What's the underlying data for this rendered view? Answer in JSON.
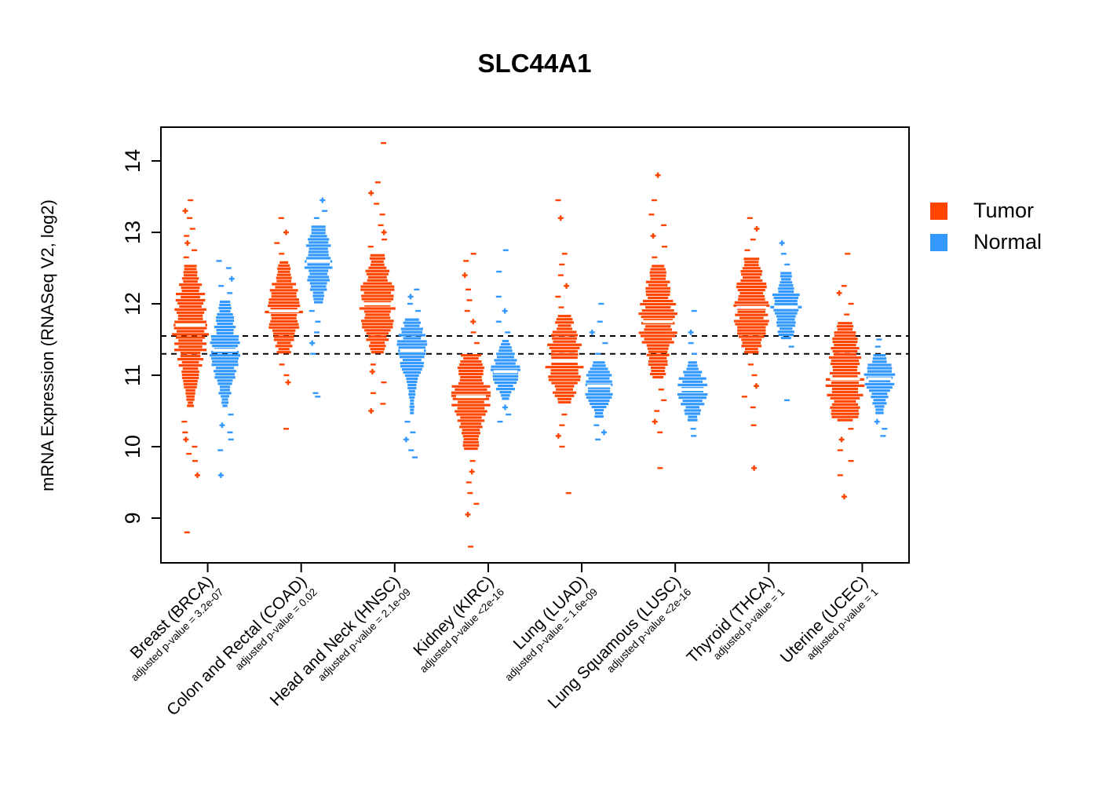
{
  "page": {
    "title": "SLC44A1"
  },
  "legend": {
    "items": [
      {
        "label": "Tumor",
        "color": "#FF4500"
      },
      {
        "label": "Normal",
        "color": "#3399FF"
      }
    ]
  },
  "chart_data": {
    "type": "violin",
    "title": "SLC44A1",
    "xlabel": "",
    "ylabel": "mRNA Expression (RNASeq V2, log2)",
    "ylim": [
      8.4,
      14.5
    ],
    "yticks": [
      9,
      10,
      11,
      12,
      13,
      14
    ],
    "grid": false,
    "legend_position": "right",
    "reference_lines": {
      "values": [
        11.55,
        11.3
      ],
      "style": "dashed",
      "color": "#000000"
    },
    "series_names": [
      "Tumor",
      "Normal"
    ],
    "categories": [
      {
        "label": "Breast (BRCA)",
        "pvalue_label": "adjusted p-value = 3.2e-07",
        "tumor": {
          "median": 11.7,
          "q1": 11.4,
          "q3": 12.1,
          "lo": 10.55,
          "hi": 12.55,
          "outliers": [
            12.65,
            12.75,
            12.85,
            12.95,
            13.05,
            13.2,
            13.3,
            13.45,
            10.35,
            10.2,
            10.1,
            10.0,
            9.9,
            9.8,
            9.6,
            8.8
          ]
        },
        "normal": {
          "median": 11.35,
          "q1": 11.05,
          "q3": 11.6,
          "lo": 10.55,
          "hi": 12.05,
          "outliers": [
            12.15,
            12.25,
            12.35,
            12.5,
            12.6,
            10.45,
            10.3,
            10.2,
            10.1,
            9.95,
            9.6
          ]
        }
      },
      {
        "label": "Colon and Rectal (COAD)",
        "pvalue_label": "adjusted p-value = 0.02",
        "tumor": {
          "median": 11.9,
          "q1": 11.65,
          "q3": 12.15,
          "lo": 11.3,
          "hi": 12.6,
          "outliers": [
            12.7,
            12.85,
            13.0,
            13.2,
            11.15,
            11.0,
            10.9,
            10.25
          ]
        },
        "normal": {
          "median": 12.6,
          "q1": 12.35,
          "q3": 12.85,
          "lo": 12.0,
          "hi": 13.1,
          "outliers": [
            13.2,
            13.3,
            13.45,
            11.9,
            11.75,
            11.6,
            11.45,
            11.3,
            10.75,
            10.7
          ]
        }
      },
      {
        "label": "Head and Neck (HNSC)",
        "pvalue_label": "adjusted p-value = 2.1e-09",
        "tumor": {
          "median": 12.0,
          "q1": 11.7,
          "q3": 12.3,
          "lo": 11.3,
          "hi": 12.7,
          "outliers": [
            12.8,
            12.9,
            13.0,
            13.1,
            13.25,
            13.4,
            13.55,
            13.7,
            14.25,
            11.15,
            11.05,
            10.9,
            10.75,
            10.6,
            10.5
          ]
        },
        "normal": {
          "median": 11.35,
          "q1": 11.1,
          "q3": 11.55,
          "lo": 10.45,
          "hi": 11.8,
          "outliers": [
            11.9,
            12.0,
            12.1,
            12.2,
            10.35,
            10.2,
            10.1,
            9.95,
            9.85
          ]
        }
      },
      {
        "label": "Kidney (KIRC)",
        "pvalue_label": "adjusted p-value <2e-16",
        "tumor": {
          "median": 10.7,
          "q1": 10.35,
          "q3": 11.0,
          "lo": 9.95,
          "hi": 11.3,
          "outliers": [
            11.45,
            11.6,
            11.75,
            11.9,
            12.05,
            12.2,
            12.4,
            12.6,
            12.7,
            9.8,
            9.65,
            9.5,
            9.35,
            9.2,
            9.05,
            8.6
          ]
        },
        "normal": {
          "median": 11.05,
          "q1": 10.9,
          "q3": 11.2,
          "lo": 10.65,
          "hi": 11.5,
          "outliers": [
            11.6,
            11.75,
            11.9,
            12.1,
            12.45,
            12.75,
            10.55,
            10.45,
            10.35
          ]
        }
      },
      {
        "label": "Lung (LUAD)",
        "pvalue_label": "adjusted p-value = 1.6e-09",
        "tumor": {
          "median": 11.2,
          "q1": 10.95,
          "q3": 11.5,
          "lo": 10.6,
          "hi": 11.85,
          "outliers": [
            11.95,
            12.1,
            12.25,
            12.4,
            12.55,
            12.7,
            13.2,
            13.45,
            10.45,
            10.3,
            10.15,
            10.0,
            9.35
          ]
        },
        "normal": {
          "median": 10.85,
          "q1": 10.65,
          "q3": 11.0,
          "lo": 10.4,
          "hi": 11.2,
          "outliers": [
            11.3,
            11.45,
            11.6,
            11.75,
            12.0,
            10.3,
            10.2,
            10.1
          ]
        }
      },
      {
        "label": "Lung Squamous (LUSC)",
        "pvalue_label": "adjusted p-value <2e-16",
        "tumor": {
          "median": 11.75,
          "q1": 11.4,
          "q3": 12.1,
          "lo": 10.95,
          "hi": 12.55,
          "outliers": [
            12.65,
            12.8,
            12.95,
            13.1,
            13.25,
            13.45,
            13.8,
            10.8,
            10.65,
            10.5,
            10.35,
            10.2,
            9.7
          ]
        },
        "normal": {
          "median": 10.8,
          "q1": 10.6,
          "q3": 10.95,
          "lo": 10.35,
          "hi": 11.2,
          "outliers": [
            11.3,
            11.45,
            11.6,
            11.9,
            10.25,
            10.15
          ]
        }
      },
      {
        "label": "Thyroid (THCA)",
        "pvalue_label": "adjusted p-value = 1",
        "tumor": {
          "median": 11.95,
          "q1": 11.65,
          "q3": 12.3,
          "lo": 11.3,
          "hi": 12.65,
          "outliers": [
            12.75,
            12.9,
            13.05,
            13.2,
            11.15,
            11.0,
            10.85,
            10.7,
            10.55,
            10.3,
            9.7
          ]
        },
        "normal": {
          "median": 11.95,
          "q1": 11.75,
          "q3": 12.15,
          "lo": 11.5,
          "hi": 12.45,
          "outliers": [
            12.55,
            12.7,
            12.85,
            11.4,
            10.65
          ]
        }
      },
      {
        "label": "Uterine (UCEC)",
        "pvalue_label": "adjusted p-value = 1",
        "tumor": {
          "median": 10.95,
          "q1": 10.65,
          "q3": 11.4,
          "lo": 10.35,
          "hi": 11.75,
          "outliers": [
            11.85,
            12.0,
            12.15,
            12.25,
            12.7,
            10.25,
            10.1,
            9.95,
            9.8,
            9.6,
            9.3
          ]
        },
        "normal": {
          "median": 10.95,
          "q1": 10.75,
          "q3": 11.1,
          "lo": 10.45,
          "hi": 11.3,
          "outliers": [
            11.4,
            11.5,
            10.35,
            10.25,
            10.15
          ]
        }
      }
    ]
  }
}
